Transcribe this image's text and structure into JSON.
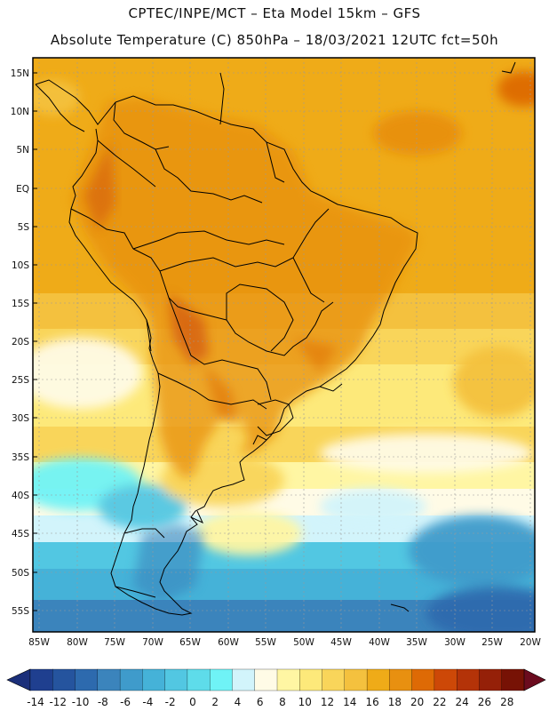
{
  "header": {
    "line1": "CPTEC/INPE/MCT –  Eta Model 15km – GFS",
    "line2": "Absolute Temperature (C) 850hPa – 18/03/2021 12UTC fct=50h"
  },
  "axes": {
    "lat_labels": [
      "15N",
      "10N",
      "5N",
      "EQ",
      "5S",
      "10S",
      "15S",
      "20S",
      "25S",
      "30S",
      "35S",
      "40S",
      "45S",
      "50S",
      "55S"
    ],
    "lon_labels": [
      "85W",
      "80W",
      "75W",
      "70W",
      "65W",
      "60W",
      "55W",
      "50W",
      "45W",
      "40W",
      "35W",
      "30W",
      "25W",
      "20W"
    ]
  },
  "colorbar": {
    "labels": [
      "-14",
      "-12",
      "-10",
      "-8",
      "-6",
      "-4",
      "-2",
      "0",
      "2",
      "4",
      "6",
      "8",
      "10",
      "12",
      "14",
      "16",
      "18",
      "20",
      "22",
      "24",
      "26",
      "28"
    ],
    "colors": [
      "#1f3f8f",
      "#25549e",
      "#2d6aae",
      "#3b84bc",
      "#3f9bcb",
      "#45b2d8",
      "#52c7e2",
      "#5edcea",
      "#6ff3f6",
      "#d2f4fb",
      "#fffbe6",
      "#fff6a3",
      "#fde97a",
      "#f9d55a",
      "#f4c13e",
      "#efab18",
      "#e89010",
      "#de6a05",
      "#cd4807",
      "#b43308",
      "#952008",
      "#771205"
    ],
    "low_end_color": "#1b2f7a",
    "high_end_color": "#6b0b1e"
  },
  "map": {
    "ocean_color_warm": "#efab18",
    "land_outline_color": "#000000",
    "grid_color": "#9a9a9a"
  }
}
